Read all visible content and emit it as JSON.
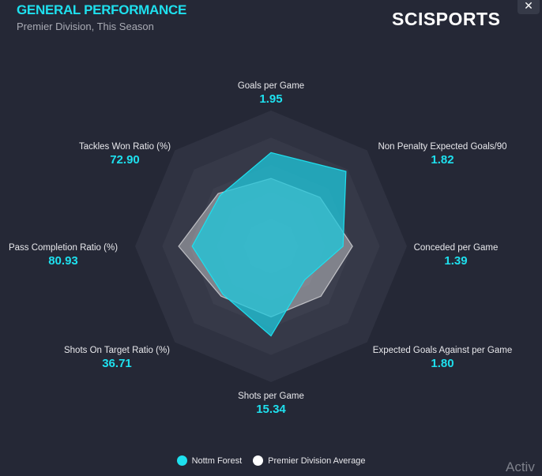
{
  "header": {
    "title": "GENERAL PERFORMANCE",
    "subtitle": "Premier Division, This Season",
    "logo": "SCISPORTS",
    "close_icon": "close-icon"
  },
  "chart_data": {
    "type": "radar",
    "axes": [
      {
        "name": "Goals per Game",
        "value": "1.95"
      },
      {
        "name": "Non Penalty Expected Goals/90",
        "value": "1.82"
      },
      {
        "name": "Conceded per Game",
        "value": "1.39"
      },
      {
        "name": "Expected Goals Against per Game",
        "value": "1.80"
      },
      {
        "name": "Shots per Game",
        "value": "15.34"
      },
      {
        "name": "Shots On Target Ratio (%)",
        "value": "36.71"
      },
      {
        "name": "Pass Completion Ratio (%)",
        "value": "80.93"
      },
      {
        "name": "Tackles Won Ratio (%)",
        "value": "72.90"
      }
    ],
    "rings": 5,
    "scale": [
      0,
      1
    ],
    "series": [
      {
        "name": "Premier Division Average",
        "color": "#ffffff",
        "values": [
          0.5,
          0.51,
          0.6,
          0.52,
          0.52,
          0.52,
          0.68,
          0.55
        ]
      },
      {
        "name": "Nottm Forest",
        "color": "#1ec8dc",
        "values": [
          0.69,
          0.78,
          0.53,
          0.35,
          0.66,
          0.5,
          0.58,
          0.53
        ]
      }
    ],
    "legend": "bottom-center"
  },
  "legend": {
    "items": [
      {
        "label": "Nottm Forest",
        "color": "#1ee0ee"
      },
      {
        "label": "Premier Division Average",
        "color": "#ffffff"
      }
    ]
  },
  "watermark": "Activ"
}
